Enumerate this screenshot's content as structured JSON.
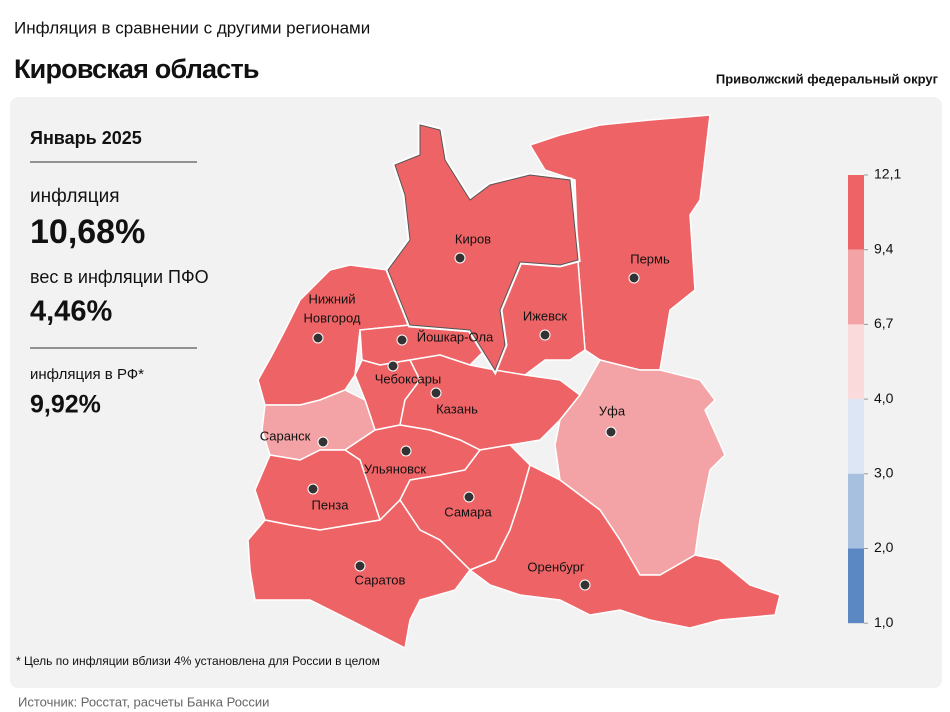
{
  "header": {
    "subtitle": "Инфляция в сравнении с другими регионами",
    "title": "Кировская область",
    "district": "Приволжский федеральный округ"
  },
  "panel": {
    "period": "Январь 2025",
    "inflation_label": "инфляция",
    "inflation_value": "10,68%",
    "weight_label": "вес в инфляции ПФО",
    "weight_value": "4,46%",
    "rf_label": "инфляция в РФ*",
    "rf_value": "9,92%"
  },
  "map": {
    "regions": [
      {
        "label": [
          "Киров"
        ],
        "color": "#ee6466",
        "highlight": true
      },
      {
        "label": [
          "Пермь"
        ],
        "color": "#ee6466"
      },
      {
        "label": [
          "Ижевск"
        ],
        "color": "#ee6466"
      },
      {
        "label": [
          "Нижний",
          "Новгород"
        ],
        "color": "#ee6466"
      },
      {
        "label": [
          "Йошкар-Ола"
        ],
        "color": "#ee6466"
      },
      {
        "label": [
          "Чебоксары"
        ],
        "color": "#ee6466"
      },
      {
        "label": [
          "Казань"
        ],
        "color": "#ee6466"
      },
      {
        "label": [
          "Уфа"
        ],
        "color": "#f3a3a5"
      },
      {
        "label": [
          "Саранск"
        ],
        "color": "#f3a3a5"
      },
      {
        "label": [
          "Ульяновск"
        ],
        "color": "#ee6466"
      },
      {
        "label": [
          "Пенза"
        ],
        "color": "#ee6466"
      },
      {
        "label": [
          "Самара"
        ],
        "color": "#ee6466"
      },
      {
        "label": [
          "Саратов"
        ],
        "color": "#ee6466"
      },
      {
        "label": [
          "Оренбург"
        ],
        "color": "#ee6466"
      }
    ],
    "legend": {
      "ticks": [
        {
          "value": 12.1,
          "label": "12,1"
        },
        {
          "value": 9.4,
          "label": "9,4"
        },
        {
          "value": 6.7,
          "label": "6,7"
        },
        {
          "value": 4.0,
          "label": "4,0"
        },
        {
          "value": 3.0,
          "label": "3,0"
        },
        {
          "value": 2.0,
          "label": "2,0"
        },
        {
          "value": 1.0,
          "label": "1,0"
        }
      ],
      "bin_colors": [
        "#ee6466",
        "#f3a3a5",
        "#fbdadb",
        "#dce6f4",
        "#a8c0e0",
        "#5b87c3"
      ]
    }
  },
  "footnote": "* Цель по инфляции вблизи 4% установлена для России в целом",
  "source": "Источник: Росстат, расчеты Банка России"
}
